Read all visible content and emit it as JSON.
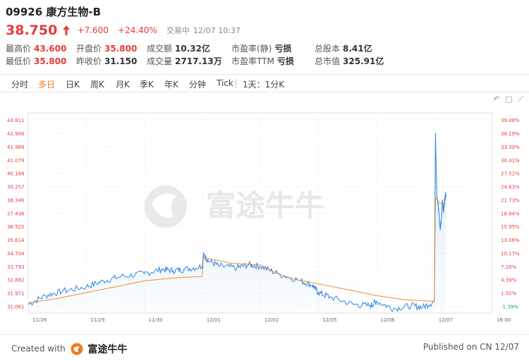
{
  "header": {
    "code": "09926",
    "name": "康方生物-B",
    "price": "38.750",
    "change": "+7.600",
    "change_pct": "+24.40%",
    "status": "交易中",
    "datetime": "12/07 10:37"
  },
  "stats": [
    {
      "label": "最高价",
      "value": "43.600",
      "color": "red"
    },
    {
      "label": "开盘价",
      "value": "35.800",
      "color": "red"
    },
    {
      "label": "成交额",
      "value": "10.32亿",
      "color": "normal"
    },
    {
      "label": "市盈率(静)",
      "value": "亏损",
      "color": "normal"
    },
    {
      "label": "总股本",
      "value": "8.41亿",
      "color": "normal"
    },
    {
      "label": "最低价",
      "value": "35.800",
      "color": "red"
    },
    {
      "label": "昨收价",
      "value": "31.150",
      "color": "normal"
    },
    {
      "label": "成交量",
      "value": "2717.13万",
      "color": "normal"
    },
    {
      "label": "市盈率TTM",
      "value": "亏损",
      "color": "normal"
    },
    {
      "label": "总市值",
      "value": "325.91亿",
      "color": "normal"
    }
  ],
  "tabs": [
    {
      "label": "分时",
      "active": false
    },
    {
      "label": "多日",
      "active": true
    },
    {
      "label": "日K",
      "active": false
    },
    {
      "label": "周K",
      "active": false
    },
    {
      "label": "月K",
      "active": false
    },
    {
      "label": "季K",
      "active": false
    },
    {
      "label": "年K",
      "active": false
    },
    {
      "label": "分钟",
      "active": false
    },
    {
      "label": "Tick",
      "active": false
    },
    {
      "label": "1天：1分K",
      "active": false
    }
  ],
  "watermark": "富途牛牛",
  "chart_data": {
    "type": "line",
    "y_left_ticks": [
      "43.811",
      "42.900",
      "41.989",
      "41.079",
      "40.168",
      "39.257",
      "38.346",
      "37.436",
      "36.525",
      "35.614",
      "34.704",
      "33.793",
      "32.882",
      "31.971",
      "31.061"
    ],
    "y_right_ticks": [
      "39.08%",
      "36.19%",
      "33.30%",
      "30.41%",
      "27.52%",
      "24.63%",
      "21.73%",
      "18.84%",
      "15.95%",
      "13.06%",
      "10.17%",
      "7.28%",
      "4.39%",
      "1.50%",
      "-1.39%"
    ],
    "x_ticks": [
      "11/28",
      "11/29",
      "11/30",
      "12/01",
      "12/02",
      "12/05",
      "12/06",
      "12/07",
      "16:00"
    ],
    "ylim": [
      30.6,
      44.3
    ],
    "series": [
      {
        "type": "price",
        "color": "#2f86e3",
        "x": [
          0,
          0.3,
          0.6,
          1.0,
          1.3,
          1.6,
          2.0,
          2.3,
          2.5,
          2.7,
          3.0,
          3.02,
          3.1,
          3.3,
          3.6,
          3.8,
          4.0,
          4.3,
          4.7,
          4.9,
          5.0,
          5.2,
          5.6,
          5.9,
          6.0,
          6.3,
          6.6,
          6.8,
          7.0,
          7.02,
          7.04,
          7.06,
          7.08,
          7.1,
          7.12,
          7.14,
          7.16,
          7.18,
          7.2
        ],
        "y": [
          31.2,
          31.8,
          32.1,
          32.4,
          32.8,
          33.1,
          33.3,
          33.6,
          33.5,
          33.6,
          33.8,
          34.6,
          34.2,
          33.8,
          33.7,
          33.9,
          33.8,
          33.3,
          32.8,
          32.5,
          32.0,
          31.7,
          31.2,
          31.1,
          31.4,
          30.9,
          31.1,
          31.0,
          31.4,
          42.9,
          39.2,
          38.1,
          37.5,
          36.4,
          37.0,
          38.3,
          37.6,
          38.4,
          38.75
        ]
      },
      {
        "type": "average",
        "color": "#ef8b2c",
        "x": [
          0,
          0.5,
          1.0,
          1.5,
          2.0,
          2.5,
          3.0,
          3.02,
          3.5,
          4.0,
          4.3,
          4.6,
          5.0,
          5.5,
          6.0,
          6.5,
          7.0,
          7.02,
          7.06,
          7.1,
          7.2
        ],
        "y": [
          31.3,
          31.6,
          32.0,
          32.4,
          32.8,
          33.0,
          33.1,
          34.4,
          34.0,
          33.9,
          33.3,
          32.9,
          32.6,
          32.2,
          31.8,
          31.5,
          31.4,
          38.5,
          38.3,
          38.1,
          38.1
        ]
      }
    ]
  },
  "footer": {
    "created_with": "Created with",
    "brand": "富途牛牛",
    "published": "Published on CN 12/07"
  }
}
